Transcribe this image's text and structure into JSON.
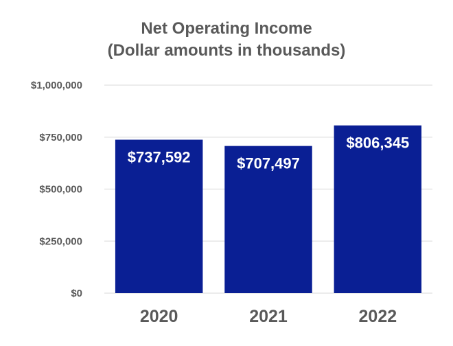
{
  "chart_data": {
    "type": "bar",
    "title": "Net Operating Income",
    "subtitle": "(Dollar amounts in thousands)",
    "xlabel": "",
    "ylabel": "",
    "categories": [
      "2020",
      "2021",
      "2022"
    ],
    "values": [
      737592,
      707497,
      806345
    ],
    "data_labels": [
      "$737,592",
      "$707,497",
      "$806,345"
    ],
    "y_ticks": [
      0,
      250000,
      500000,
      750000,
      1000000
    ],
    "y_tick_labels": [
      "$0",
      "$250,000",
      "$500,000",
      "$750,000",
      "$1,000,000"
    ],
    "ylim": [
      0,
      1000000
    ],
    "grid": true,
    "legend": "none",
    "colors": {
      "bar": "#0a1f94",
      "grid": "#e6e6e6",
      "text": "#595959",
      "data_label": "#ffffff"
    }
  }
}
